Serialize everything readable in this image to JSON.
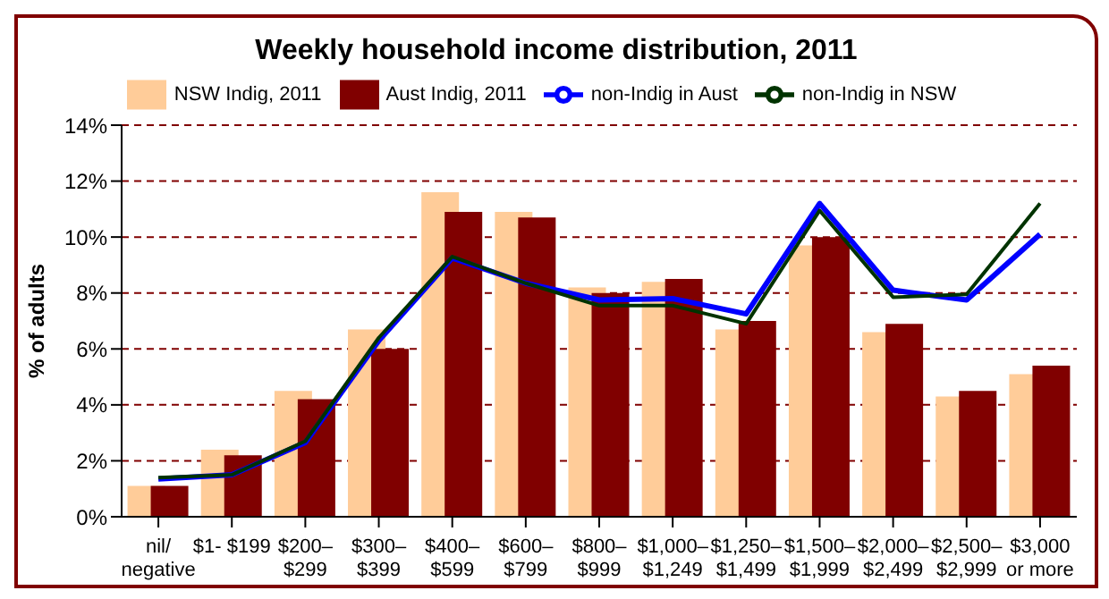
{
  "chart_data": {
    "type": "bar",
    "title": "Weekly household income distribution, 2011",
    "ylabel": "% of adults",
    "categories": [
      "nil/\nnegative",
      "$1- $199",
      "$200–\n$299",
      "$300–\n$399",
      "$400–\n$599",
      "$600–\n$799",
      "$800–\n$999",
      "$1,000–\n$1,249",
      "$1,250–\n$1,499",
      "$1,500–\n$1,999",
      "$2,000–\n$2,499",
      "$2,500–\n$2,999",
      "$3,000\nor more"
    ],
    "series": [
      {
        "name": "NSW Indig, 2011",
        "color": "#ffcc99",
        "values": [
          1.1,
          2.4,
          4.5,
          6.7,
          11.6,
          10.9,
          8.2,
          8.4,
          6.7,
          9.7,
          6.6,
          4.3,
          5.1
        ]
      },
      {
        "name": "Aust Indig, 2011",
        "color": "#800000",
        "values": [
          1.1,
          2.2,
          4.2,
          6.0,
          10.9,
          10.7,
          8.0,
          8.5,
          7.0,
          10.0,
          6.9,
          4.5,
          5.4
        ]
      },
      {
        "name": "non-Indig in Aust",
        "type": "line",
        "color": "#0000ff",
        "values": [
          1.35,
          1.5,
          2.65,
          6.3,
          9.25,
          8.35,
          7.75,
          7.8,
          7.25,
          11.2,
          8.1,
          7.75,
          10.1
        ]
      },
      {
        "name": "non-Indig in NSW",
        "type": "line",
        "color": "#003300",
        "values": [
          1.4,
          1.5,
          2.7,
          6.4,
          9.3,
          8.35,
          7.55,
          7.55,
          6.9,
          10.95,
          7.85,
          7.95,
          11.2
        ]
      }
    ],
    "ylim": [
      0,
      14
    ],
    "yticks": [
      {
        "value": 0,
        "label": "0%"
      },
      {
        "value": 2,
        "label": "2%"
      },
      {
        "value": 4,
        "label": "4%"
      },
      {
        "value": 6,
        "label": "6%"
      },
      {
        "value": 8,
        "label": "8%"
      },
      {
        "value": 10,
        "label": "10%"
      },
      {
        "value": 12,
        "label": "12%"
      },
      {
        "value": 14,
        "label": "14%"
      }
    ],
    "grid": "y",
    "legend": "top",
    "marker": "none",
    "line_style": "solid"
  }
}
